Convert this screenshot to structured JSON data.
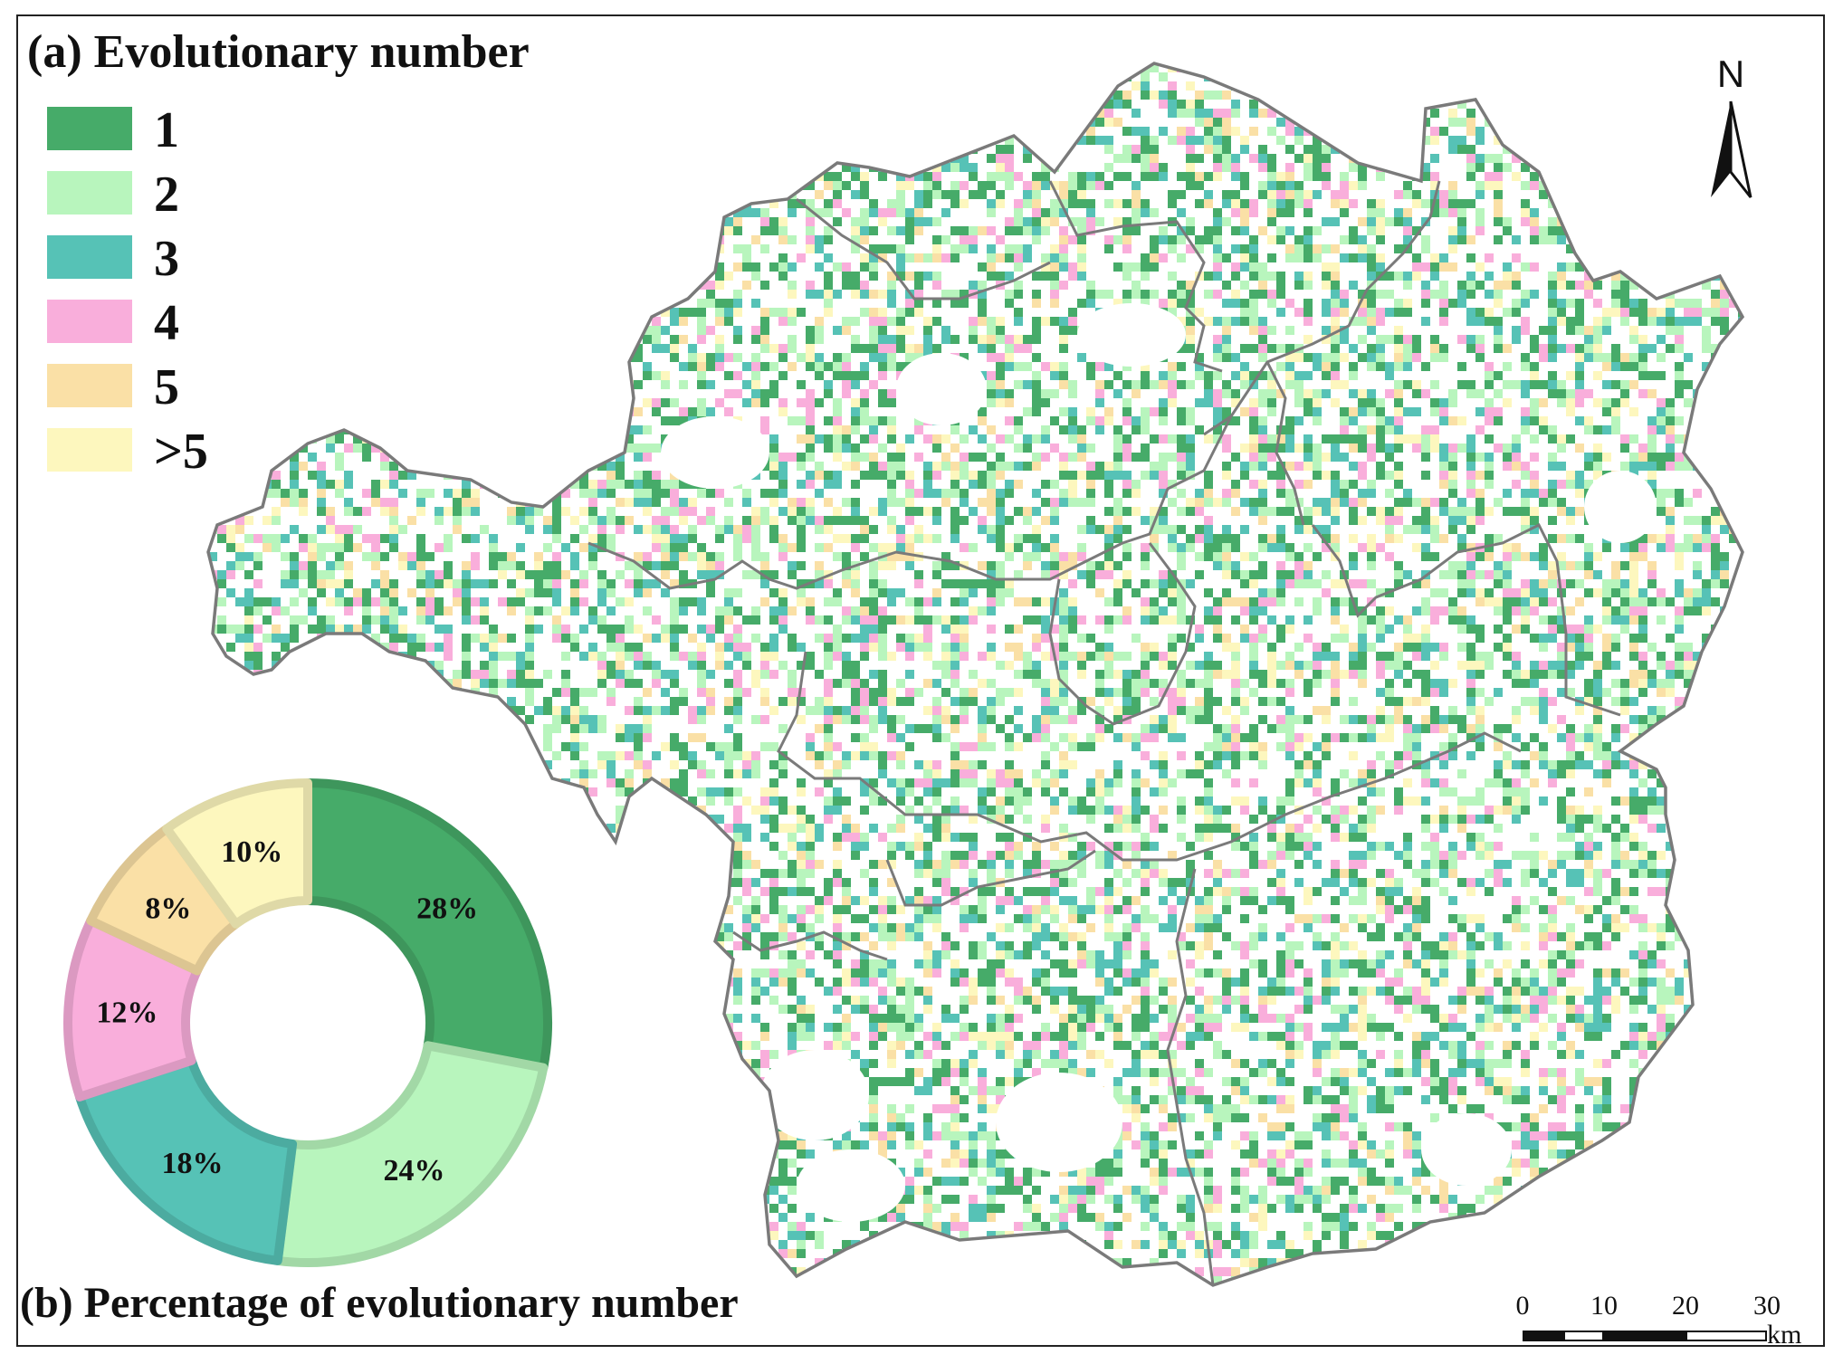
{
  "title_a": "(a) Evolutionary number",
  "title_b": "(b) Percentage of evolutionary number",
  "legend": [
    {
      "label": "1",
      "color": "#46ab69"
    },
    {
      "label": "2",
      "color": "#b8f5bd"
    },
    {
      "label": "3",
      "color": "#56c2b6"
    },
    {
      "label": "4",
      "color": "#f9aedb"
    },
    {
      "label": "5",
      "color": "#fae0a6"
    },
    {
      "label": ">5",
      "color": "#fdf7be"
    }
  ],
  "north_label": "N",
  "scale_bar": {
    "ticks": [
      "0",
      "10",
      "20",
      "30"
    ],
    "unit": "km"
  },
  "boundary_color": "#7a7a7a",
  "chart_data": {
    "type": "pie",
    "style": "donut",
    "categories": [
      "1",
      "2",
      "3",
      "4",
      "5",
      ">5"
    ],
    "values": [
      28,
      24,
      18,
      12,
      8,
      10
    ],
    "labels": [
      "28%",
      "24%",
      "18%",
      "12%",
      "8%",
      "10%"
    ],
    "colors": [
      "#46ab69",
      "#b8f5bd",
      "#56c2b6",
      "#f9aedb",
      "#fae0a6",
      "#fdf7be"
    ]
  }
}
